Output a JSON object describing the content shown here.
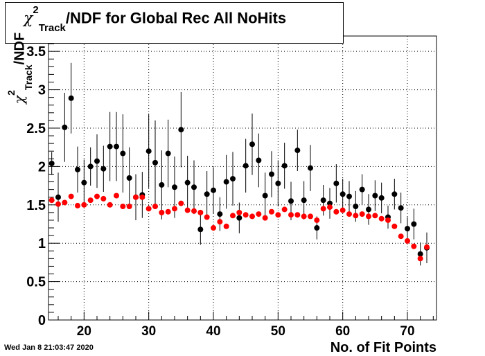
{
  "title": {
    "symbol": "χ",
    "superscript": "2",
    "subscript": "Track",
    "rest": "/NDF for Global Rec All NoHits"
  },
  "ylabel": {
    "symbol": "χ",
    "superscript": "2",
    "subscript": "Track",
    "rest": "/NDF"
  },
  "xlabel": "No. of Fit Points",
  "timestamp": "Wed Jan  8 21:03:47 2020",
  "colors": {
    "series_black": "#000000",
    "series_red": "#ff0000",
    "grid": "#000000"
  },
  "chart_data": {
    "type": "scatter",
    "xlim": [
      14.5,
      74.5
    ],
    "ylim": [
      0,
      3.7
    ],
    "x_ticks": [
      20,
      30,
      40,
      50,
      60,
      70
    ],
    "y_ticks": [
      0,
      0.5,
      1,
      1.5,
      2,
      2.5,
      3,
      3.5
    ],
    "x_tick_labels": [
      "20",
      "30",
      "40",
      "50",
      "60",
      "70"
    ],
    "y_tick_labels": [
      "0",
      "0.5",
      "1",
      "1.5",
      "2",
      "2.5",
      "3",
      "3.5"
    ],
    "grid": true,
    "series": [
      {
        "color": "#000000",
        "points": [
          {
            "x": 15,
            "y": 2.04,
            "err": 0.15
          },
          {
            "x": 16,
            "y": 1.6,
            "err": 0.32
          },
          {
            "x": 17,
            "y": 2.51,
            "err": 0.45
          },
          {
            "x": 18,
            "y": 2.89,
            "err": 0.46
          },
          {
            "x": 19,
            "y": 1.96,
            "err": 0.3
          },
          {
            "x": 20,
            "y": 1.79,
            "err": 0.3
          },
          {
            "x": 21,
            "y": 2.0,
            "err": 0.25
          },
          {
            "x": 22,
            "y": 2.07,
            "err": 0.35
          },
          {
            "x": 23,
            "y": 1.97,
            "err": 0.3
          },
          {
            "x": 24,
            "y": 2.26,
            "err": 0.45
          },
          {
            "x": 25,
            "y": 2.26,
            "err": 0.45
          },
          {
            "x": 26,
            "y": 2.17,
            "err": 0.51
          },
          {
            "x": 27,
            "y": 1.85,
            "err": 0.4
          },
          {
            "x": 28,
            "y": 1.6,
            "err": 0.3
          },
          {
            "x": 29,
            "y": 1.63,
            "err": 0.3
          },
          {
            "x": 30,
            "y": 2.2,
            "err": 0.48
          },
          {
            "x": 31,
            "y": 2.05,
            "err": 0.55
          },
          {
            "x": 32,
            "y": 1.76,
            "err": 0.45
          },
          {
            "x": 33,
            "y": 2.17,
            "err": 0.44
          },
          {
            "x": 34,
            "y": 1.73,
            "err": 0.4
          },
          {
            "x": 35,
            "y": 2.48,
            "err": 0.49
          },
          {
            "x": 36,
            "y": 1.79,
            "err": 0.35
          },
          {
            "x": 37,
            "y": 1.73,
            "err": 0.35
          },
          {
            "x": 38,
            "y": 1.18,
            "err": 0.2
          },
          {
            "x": 39,
            "y": 1.64,
            "err": 0.3
          },
          {
            "x": 40,
            "y": 1.69,
            "err": 0.3
          },
          {
            "x": 41,
            "y": 1.38,
            "err": 0.22
          },
          {
            "x": 42,
            "y": 1.8,
            "err": 0.35
          },
          {
            "x": 43,
            "y": 1.84,
            "err": 0.35
          },
          {
            "x": 44,
            "y": 1.33,
            "err": 0.2
          },
          {
            "x": 45,
            "y": 2.01,
            "err": 0.35
          },
          {
            "x": 46,
            "y": 2.29,
            "err": 0.4
          },
          {
            "x": 47,
            "y": 2.08,
            "err": 0.35
          },
          {
            "x": 48,
            "y": 1.62,
            "err": 0.3
          },
          {
            "x": 49,
            "y": 1.9,
            "err": 0.3
          },
          {
            "x": 50,
            "y": 1.78,
            "err": 0.3
          },
          {
            "x": 51,
            "y": 2.01,
            "err": 0.3
          },
          {
            "x": 52,
            "y": 1.55,
            "err": 0.25
          },
          {
            "x": 53,
            "y": 2.21,
            "err": 0.27
          },
          {
            "x": 54,
            "y": 1.56,
            "err": 0.25
          },
          {
            "x": 55,
            "y": 1.98,
            "err": 0.3
          },
          {
            "x": 56,
            "y": 1.2,
            "err": 0.15
          },
          {
            "x": 57,
            "y": 1.56,
            "err": 0.2
          },
          {
            "x": 58,
            "y": 1.52,
            "err": 0.2
          },
          {
            "x": 59,
            "y": 1.78,
            "err": 0.25
          },
          {
            "x": 60,
            "y": 1.64,
            "err": 0.2
          },
          {
            "x": 61,
            "y": 1.61,
            "err": 0.2
          },
          {
            "x": 62,
            "y": 1.48,
            "err": 0.2
          },
          {
            "x": 63,
            "y": 1.7,
            "err": 0.2
          },
          {
            "x": 64,
            "y": 1.44,
            "err": 0.2
          },
          {
            "x": 65,
            "y": 1.62,
            "err": 0.2
          },
          {
            "x": 66,
            "y": 1.59,
            "err": 0.2
          },
          {
            "x": 67,
            "y": 1.34,
            "err": 0.15
          },
          {
            "x": 68,
            "y": 1.64,
            "err": 0.2
          },
          {
            "x": 69,
            "y": 1.46,
            "err": 0.2
          },
          {
            "x": 70,
            "y": 1.19,
            "err": 0.15
          },
          {
            "x": 71,
            "y": 1.25,
            "err": 0.2
          },
          {
            "x": 72,
            "y": 0.86,
            "err": 0.15
          },
          {
            "x": 73,
            "y": 0.94,
            "err": 0.2
          }
        ]
      },
      {
        "color": "#ff0000",
        "points": [
          {
            "x": 15,
            "y": 1.56
          },
          {
            "x": 16,
            "y": 1.51
          },
          {
            "x": 17,
            "y": 1.53
          },
          {
            "x": 18,
            "y": 1.61
          },
          {
            "x": 19,
            "y": 1.49
          },
          {
            "x": 20,
            "y": 1.5
          },
          {
            "x": 21,
            "y": 1.56
          },
          {
            "x": 22,
            "y": 1.61
          },
          {
            "x": 23,
            "y": 1.58
          },
          {
            "x": 24,
            "y": 1.5
          },
          {
            "x": 25,
            "y": 1.62
          },
          {
            "x": 26,
            "y": 1.48
          },
          {
            "x": 27,
            "y": 1.48
          },
          {
            "x": 28,
            "y": 1.6
          },
          {
            "x": 29,
            "y": 1.6
          },
          {
            "x": 30,
            "y": 1.45
          },
          {
            "x": 31,
            "y": 1.48
          },
          {
            "x": 32,
            "y": 1.4
          },
          {
            "x": 33,
            "y": 1.41
          },
          {
            "x": 34,
            "y": 1.45
          },
          {
            "x": 35,
            "y": 1.52
          },
          {
            "x": 36,
            "y": 1.43
          },
          {
            "x": 37,
            "y": 1.42
          },
          {
            "x": 38,
            "y": 1.4
          },
          {
            "x": 39,
            "y": 1.34
          },
          {
            "x": 40,
            "y": 1.2
          },
          {
            "x": 41,
            "y": 1.28
          },
          {
            "x": 42,
            "y": 1.22
          },
          {
            "x": 43,
            "y": 1.36
          },
          {
            "x": 44,
            "y": 1.4
          },
          {
            "x": 45,
            "y": 1.37
          },
          {
            "x": 46,
            "y": 1.35
          },
          {
            "x": 47,
            "y": 1.38
          },
          {
            "x": 48,
            "y": 1.33
          },
          {
            "x": 49,
            "y": 1.41
          },
          {
            "x": 50,
            "y": 1.37
          },
          {
            "x": 51,
            "y": 1.44
          },
          {
            "x": 52,
            "y": 1.37
          },
          {
            "x": 53,
            "y": 1.37
          },
          {
            "x": 54,
            "y": 1.35
          },
          {
            "x": 55,
            "y": 1.35
          },
          {
            "x": 56,
            "y": 1.3
          },
          {
            "x": 57,
            "y": 1.45
          },
          {
            "x": 58,
            "y": 1.47
          },
          {
            "x": 59,
            "y": 1.41
          },
          {
            "x": 60,
            "y": 1.43
          },
          {
            "x": 61,
            "y": 1.38
          },
          {
            "x": 62,
            "y": 1.36
          },
          {
            "x": 63,
            "y": 1.38
          },
          {
            "x": 64,
            "y": 1.35
          },
          {
            "x": 65,
            "y": 1.36
          },
          {
            "x": 66,
            "y": 1.32
          },
          {
            "x": 67,
            "y": 1.3
          },
          {
            "x": 68,
            "y": 1.22
          },
          {
            "x": 69,
            "y": 1.09
          },
          {
            "x": 70,
            "y": 1.03
          },
          {
            "x": 71,
            "y": 0.96
          },
          {
            "x": 72,
            "y": 0.8
          },
          {
            "x": 73,
            "y": 0.95
          }
        ]
      }
    ]
  }
}
